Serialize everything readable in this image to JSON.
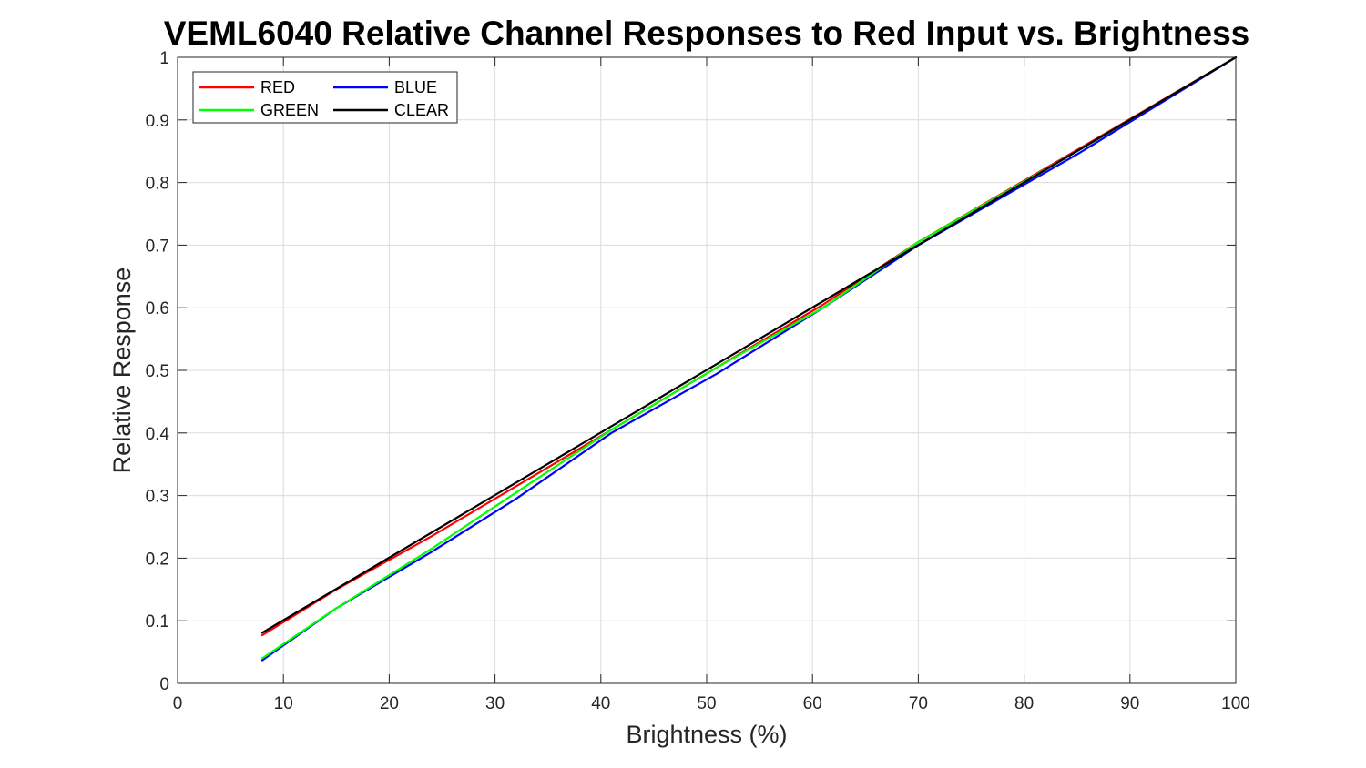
{
  "chart_data": {
    "type": "line",
    "title": "VEML6040 Relative Channel Responses to Red Input vs. Brightness",
    "xlabel": "Brightness (%)",
    "ylabel": "Relative Response",
    "xlim": [
      0,
      100
    ],
    "ylim": [
      0,
      1
    ],
    "xticks": [
      0,
      10,
      20,
      30,
      40,
      50,
      60,
      70,
      80,
      90,
      100
    ],
    "yticks": [
      0,
      0.1,
      0.2,
      0.3,
      0.4,
      0.5,
      0.6,
      0.7,
      0.8,
      0.9,
      1
    ],
    "xtick_labels": [
      "0",
      "10",
      "20",
      "30",
      "40",
      "50",
      "60",
      "70",
      "80",
      "90",
      "100"
    ],
    "ytick_labels": [
      "0",
      "0.1",
      "0.2",
      "0.3",
      "0.4",
      "0.5",
      "0.6",
      "0.7",
      "0.8",
      "0.9",
      "1"
    ],
    "grid": true,
    "legend_position": "top-left",
    "series": [
      {
        "name": "RED",
        "color": "#ff0000",
        "x": [
          8,
          15,
          24,
          32,
          41,
          51,
          61,
          70,
          85,
          100
        ],
        "y": [
          0.077,
          0.15,
          0.235,
          0.315,
          0.405,
          0.505,
          0.605,
          0.705,
          0.852,
          1.0
        ]
      },
      {
        "name": "BLUE",
        "color": "#0000ff",
        "x": [
          8,
          15,
          24,
          32,
          41,
          51,
          61,
          70,
          85,
          100
        ],
        "y": [
          0.037,
          0.12,
          0.21,
          0.295,
          0.4,
          0.495,
          0.6,
          0.7,
          0.845,
          1.0
        ]
      },
      {
        "name": "GREEN",
        "color": "#00ff00",
        "x": [
          8,
          15,
          24,
          32,
          41,
          51,
          61,
          70,
          85,
          100
        ],
        "y": [
          0.04,
          0.12,
          0.215,
          0.305,
          0.405,
          0.505,
          0.6,
          0.705,
          0.85,
          1.0
        ]
      },
      {
        "name": "CLEAR",
        "color": "#000000",
        "x": [
          8,
          100
        ],
        "y": [
          0.081,
          1.0
        ]
      }
    ]
  }
}
